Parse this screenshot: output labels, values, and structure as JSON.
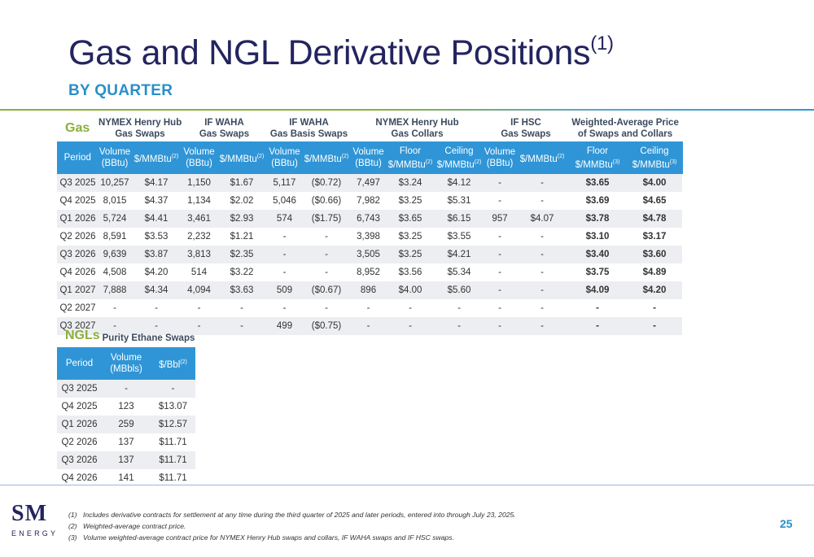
{
  "title": "Gas and NGL Derivative Positions",
  "title_sup": "(1)",
  "subtitle": "BY QUARTER",
  "gas_label": "Gas",
  "ngl_label": "NGLs",
  "gas_groups": [
    "NYMEX Henry Hub\nGas Swaps",
    "IF WAHA\nGas Swaps",
    "IF WAHA\nGas Basis Swaps",
    "NYMEX Henry Hub\nGas Collars",
    "IF HSC\nGas Swaps",
    "Weighted-Average Price\nof Swaps and Collars"
  ],
  "gas_headers": [
    {
      "text": "Period",
      "sup": ""
    },
    {
      "text": "Volume\n(BBtu)",
      "sup": ""
    },
    {
      "text": "$/MMBtu",
      "sup": "(2)"
    },
    {
      "text": "Volume\n(BBtu)",
      "sup": ""
    },
    {
      "text": "$/MMBtu",
      "sup": "(2)"
    },
    {
      "text": "Volume\n(BBtu)",
      "sup": ""
    },
    {
      "text": "$/MMBtu",
      "sup": "(2)"
    },
    {
      "text": "Volume\n(BBtu)",
      "sup": ""
    },
    {
      "text": "Floor\n$/MMBtu",
      "sup": "(2)"
    },
    {
      "text": "Ceiling\n$/MMBtu",
      "sup": "(2)"
    },
    {
      "text": "Volume\n(BBtu)",
      "sup": ""
    },
    {
      "text": "$/MMBtu",
      "sup": "(2)"
    },
    {
      "text": "Floor\n$/MMBtu",
      "sup": "(3)"
    },
    {
      "text": "Ceiling\n$/MMBtu",
      "sup": "(3)"
    }
  ],
  "gas_rows": [
    [
      "Q3 2025",
      "10,257",
      "$4.17",
      "1,150",
      "$1.67",
      "5,117",
      "($0.72)",
      "7,497",
      "$3.24",
      "$4.12",
      "-",
      "-",
      "$3.65",
      "$4.00"
    ],
    [
      "Q4 2025",
      "8,015",
      "$4.37",
      "1,134",
      "$2.02",
      "5,046",
      "($0.66)",
      "7,982",
      "$3.25",
      "$5.31",
      "-",
      "-",
      "$3.69",
      "$4.65"
    ],
    [
      "Q1 2026",
      "5,724",
      "$4.41",
      "3,461",
      "$2.93",
      "574",
      "($1.75)",
      "6,743",
      "$3.65",
      "$6.15",
      "957",
      "$4.07",
      "$3.78",
      "$4.78"
    ],
    [
      "Q2 2026",
      "8,591",
      "$3.53",
      "2,232",
      "$1.21",
      "-",
      "-",
      "3,398",
      "$3.25",
      "$3.55",
      "-",
      "-",
      "$3.10",
      "$3.17"
    ],
    [
      "Q3 2026",
      "9,639",
      "$3.87",
      "3,813",
      "$2.35",
      "-",
      "-",
      "3,505",
      "$3.25",
      "$4.21",
      "-",
      "-",
      "$3.40",
      "$3.60"
    ],
    [
      "Q4 2026",
      "4,508",
      "$4.20",
      "514",
      "$3.22",
      "-",
      "-",
      "8,952",
      "$3.56",
      "$5.34",
      "-",
      "-",
      "$3.75",
      "$4.89"
    ],
    [
      "Q1 2027",
      "7,888",
      "$4.34",
      "4,094",
      "$3.63",
      "509",
      "($0.67)",
      "896",
      "$4.00",
      "$5.60",
      "-",
      "-",
      "$4.09",
      "$4.20"
    ],
    [
      "Q2 2027",
      "-",
      "-",
      "-",
      "-",
      "-",
      "-",
      "-",
      "-",
      "-",
      "-",
      "-",
      "-",
      "-"
    ],
    [
      "Q3 2027",
      "-",
      "-",
      "-",
      "-",
      "499",
      "($0.75)",
      "-",
      "-",
      "-",
      "-",
      "-",
      "-",
      "-"
    ]
  ],
  "ngl_group": "Purity Ethane Swaps",
  "ngl_headers": [
    {
      "text": "Period",
      "sup": ""
    },
    {
      "text": "Volume\n(MBbls)",
      "sup": ""
    },
    {
      "text": "$/Bbl",
      "sup": "(2)"
    }
  ],
  "ngl_rows": [
    [
      "Q3 2025",
      "-",
      "-"
    ],
    [
      "Q4 2025",
      "123",
      "$13.07"
    ],
    [
      "Q1 2026",
      "259",
      "$12.57"
    ],
    [
      "Q2 2026",
      "137",
      "$11.71"
    ],
    [
      "Q3 2026",
      "137",
      "$11.71"
    ],
    [
      "Q4 2026",
      "141",
      "$11.71"
    ]
  ],
  "footnotes": [
    {
      "num": "(1)",
      "text": "Includes derivative contracts for settlement at any time during the third  quarter of 2025 and later periods, entered into through July 23, 2025."
    },
    {
      "num": "(2)",
      "text": "Weighted-average contract price."
    },
    {
      "num": "(3)",
      "text": "Volume weighted-average contract price for NYMEX Henry Hub swaps and collars, IF WAHA swaps and IF HSC swaps."
    }
  ],
  "logo": {
    "top": "SM",
    "bottom": "ENERGY"
  },
  "page_number": "25",
  "colors": {
    "navy": "#23245e",
    "accent_blue": "#2a8fc8",
    "header_blue": "#2f95d6",
    "green": "#8bb03a",
    "stripe": "#eceef1"
  }
}
